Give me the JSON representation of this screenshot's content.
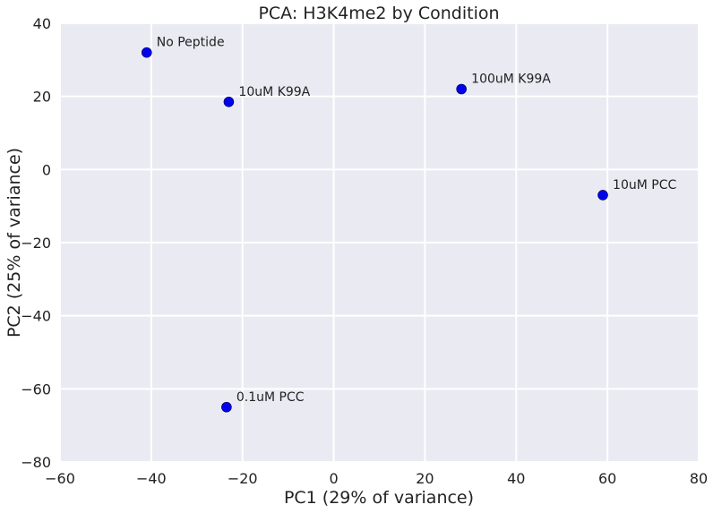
{
  "chart_data": {
    "type": "scatter",
    "title": "PCA: H3K4me2 by Condition",
    "xlabel": "PC1 (29% of variance)",
    "ylabel": "PC2 (25% of variance)",
    "xlim": [
      -60,
      80
    ],
    "ylim": [
      -80,
      40
    ],
    "xticks": [
      -60,
      -40,
      -20,
      0,
      20,
      40,
      60,
      80
    ],
    "yticks": [
      -80,
      -60,
      -40,
      -20,
      0,
      20,
      40
    ],
    "xtick_labels": [
      "−60",
      "−40",
      "−20",
      "0",
      "20",
      "40",
      "60",
      "80"
    ],
    "ytick_labels": [
      "−80",
      "−60",
      "−40",
      "−20",
      "0",
      "20",
      "40"
    ],
    "grid": true,
    "point_color": "#0000ee",
    "background_color": "#eaeaf2",
    "points": [
      {
        "label": "No Peptide",
        "x": -41,
        "y": 32
      },
      {
        "label": "10uM K99A",
        "x": -23,
        "y": 18.5
      },
      {
        "label": "100uM K99A",
        "x": 28,
        "y": 22
      },
      {
        "label": "10uM PCC",
        "x": 59,
        "y": -7
      },
      {
        "label": "0.1uM PCC",
        "x": -23.5,
        "y": -65
      }
    ]
  }
}
